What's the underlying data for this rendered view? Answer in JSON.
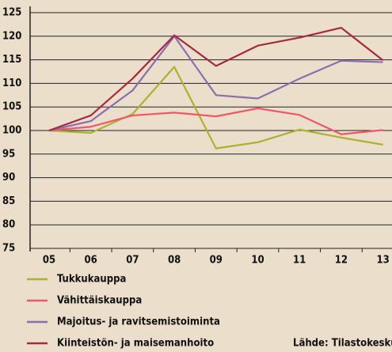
{
  "chart_data": {
    "type": "line",
    "categories": [
      "05",
      "06",
      "07",
      "08",
      "09",
      "10",
      "11",
      "12",
      "13"
    ],
    "series": [
      {
        "name": "Tukkukauppa",
        "color": "#a9b233",
        "values": [
          100,
          99.5,
          103.5,
          113.5,
          96.2,
          97.5,
          100.2,
          98.5,
          97
        ]
      },
      {
        "name": "Vähittäiskauppa",
        "color": "#f0566a",
        "values": [
          100,
          100.8,
          103.2,
          103.8,
          103.0,
          104.7,
          103.3,
          99.2,
          100.1
        ]
      },
      {
        "name": "Majoitus- ja ravitsemistoiminta",
        "color": "#8a6db3",
        "values": [
          100,
          102,
          108.5,
          120,
          107.5,
          106.8,
          111,
          114.8,
          114.5
        ]
      },
      {
        "name": "Kiinteistön- ja maisemanhoito",
        "color": "#a52a3f",
        "values": [
          100,
          103.2,
          111,
          120.2,
          113.7,
          118,
          119.7,
          121.8,
          114.9
        ]
      }
    ],
    "ylim": [
      75,
      125
    ],
    "yticks": [
      75,
      80,
      85,
      90,
      95,
      100,
      105,
      110,
      115,
      120,
      125
    ],
    "grid": true,
    "source": "Lähde: Tilastokeskus"
  }
}
